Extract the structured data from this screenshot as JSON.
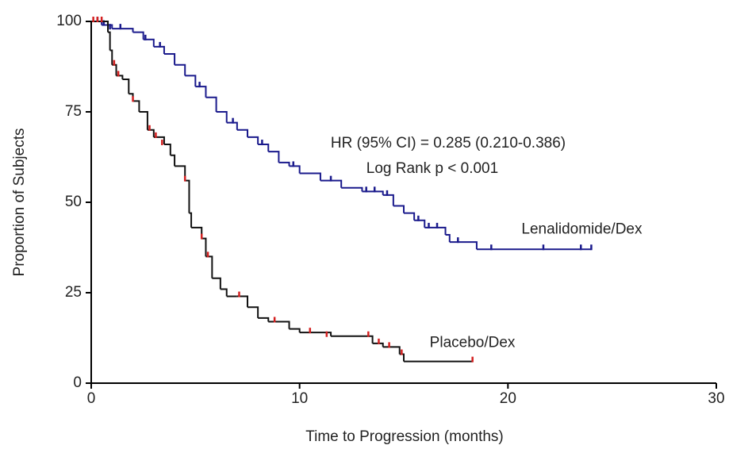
{
  "chart_data": {
    "type": "line",
    "step": true,
    "xlabel": "Time to Progression (months)",
    "ylabel": "Proportion of Subjects",
    "annotations": [
      "HR (95% CI) = 0.285 (0.210-0.386)",
      "Log Rank p < 0.001"
    ],
    "xlim": [
      0,
      30
    ],
    "xticks": [
      0,
      10,
      20,
      30
    ],
    "ylim": [
      0,
      100
    ],
    "yticks": [
      0,
      25,
      50,
      75,
      100
    ],
    "grid": false,
    "series": [
      {
        "name": "Lenalidomide/Dex",
        "color": "#1a1a8c",
        "censor_color": "#1a1a8c",
        "x": [
          0,
          0.5,
          1,
          2,
          2.5,
          3,
          3.5,
          4,
          4.5,
          5,
          5.5,
          6,
          6.5,
          7,
          7.5,
          8,
          8.5,
          9,
          9.5,
          10,
          11,
          12,
          13,
          14,
          14.5,
          15,
          15.5,
          16,
          17,
          17.2,
          18.5,
          24
        ],
        "values": [
          100,
          99,
          98,
          97,
          95,
          93,
          91,
          88,
          85,
          82,
          79,
          75,
          72,
          70,
          68,
          66,
          64,
          61,
          60,
          58,
          56,
          54,
          53,
          52,
          49,
          47,
          45,
          43,
          41,
          39,
          37,
          37
        ],
        "censor_x": [
          0.3,
          0.6,
          0.9,
          1.4,
          2.6,
          3.3,
          5.2,
          6.8,
          8.2,
          9.7,
          11.5,
          13.2,
          13.6,
          14.2,
          15.7,
          16.2,
          16.6,
          17.6,
          19.2,
          21.7,
          23.5,
          24
        ],
        "censor_values": [
          100,
          99,
          98,
          98,
          95,
          93,
          82,
          72,
          66,
          60,
          56,
          53,
          53,
          52,
          45,
          43,
          43,
          39,
          37,
          37,
          37,
          37
        ]
      },
      {
        "name": "Placebo/Dex",
        "color": "#111111",
        "censor_color": "#d42020",
        "x": [
          0,
          0.8,
          0.9,
          1,
          1.2,
          1.5,
          1.8,
          2,
          2.3,
          2.7,
          3,
          3.5,
          3.8,
          4,
          4.5,
          4.7,
          4.8,
          5.3,
          5.5,
          5.8,
          6.2,
          6.5,
          7,
          7.5,
          8,
          8.5,
          9.5,
          10,
          11.5,
          13.5,
          14,
          14.8,
          15,
          18.3
        ],
        "values": [
          100,
          97,
          92,
          88,
          85,
          84,
          80,
          78,
          75,
          70,
          68,
          66,
          63,
          60,
          56,
          47,
          43,
          40,
          35,
          29,
          26,
          24,
          24,
          21,
          18,
          17,
          15,
          14,
          13,
          11,
          10,
          8,
          6,
          6
        ],
        "censor_x": [
          0.1,
          0.3,
          0.5,
          1.1,
          1.3,
          2.0,
          2.8,
          3.1,
          3.4,
          4.5,
          5.3,
          5.6,
          7.1,
          8.8,
          10.5,
          11.3,
          13.3,
          13.8,
          14.3,
          14.9,
          18.3
        ],
        "censor_values": [
          100,
          100,
          100,
          88,
          85,
          78,
          70,
          68,
          66,
          56,
          40,
          35,
          24,
          17,
          14,
          13,
          13,
          11,
          10,
          8,
          6
        ]
      }
    ]
  }
}
